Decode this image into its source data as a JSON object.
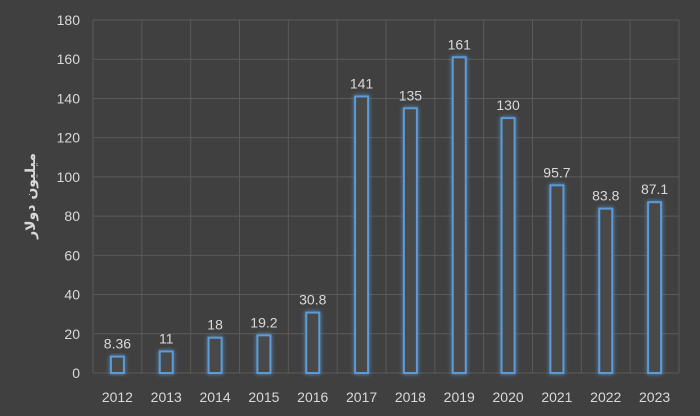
{
  "chart_data": {
    "type": "bar",
    "categories": [
      "2012",
      "2013",
      "2014",
      "2015",
      "2016",
      "2017",
      "2018",
      "2019",
      "2020",
      "2021",
      "2022",
      "2023"
    ],
    "values": [
      8.36,
      11,
      18,
      19.2,
      30.8,
      141,
      135,
      161,
      130,
      95.7,
      83.8,
      87.1
    ],
    "data_labels": [
      "8.36",
      "11",
      "18",
      "19.2",
      "30.8",
      "141",
      "135",
      "161",
      "130",
      "95.7",
      "83.8",
      "87.1"
    ],
    "title": "",
    "xlabel": "",
    "ylabel": "میلیون دولار",
    "ylim": [
      0,
      180
    ],
    "yticks": [
      0,
      20,
      40,
      60,
      80,
      100,
      120,
      140,
      160,
      180
    ],
    "grid": true,
    "legend": "none",
    "colors": {
      "background": "#404040",
      "grid": "#5a5a5a",
      "bar_fill": "#4a4a4a",
      "bar_stroke": "#5b9bd5",
      "bar_glow": "#2e75b6",
      "text": "#d9d9d9"
    }
  }
}
